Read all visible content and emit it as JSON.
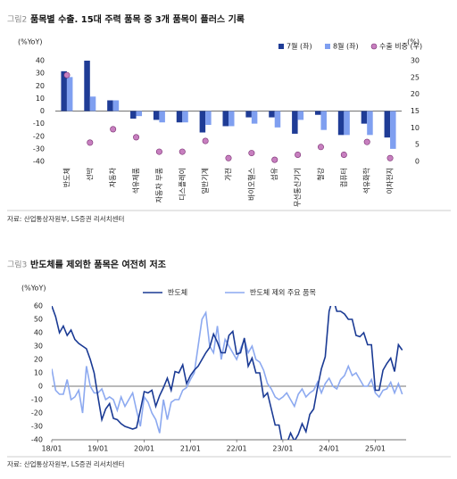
{
  "chart_data": [
    {
      "type": "bar",
      "figure": "그림2",
      "title": "품목별 수출. 15대 주력 품목 중 3개 품목이 플러스 기록",
      "ylabel": "(%YoY)",
      "y2label": "(%)",
      "categories": [
        "반도체",
        "선박",
        "자동차",
        "석유제품",
        "자동차 부품",
        "디스플레이",
        "일반기계",
        "가전",
        "바이오헬스",
        "섬유",
        "무선통신기기",
        "철강",
        "컴퓨터",
        "석유화학",
        "이차전지"
      ],
      "series": [
        {
          "name": "7월 (좌)",
          "color": "#1f3c96",
          "values": [
            31.6,
            40,
            8.5,
            -6,
            -7,
            -9,
            -17,
            -12,
            -5,
            -5,
            -18,
            -3,
            -19,
            -10,
            -21
          ]
        },
        {
          "name": "8월 (좌)",
          "color": "#7f9ff0",
          "values": [
            27,
            11.5,
            8.5,
            -4,
            -9,
            -9,
            -11,
            -12,
            -10,
            -13,
            -7,
            -15,
            -19,
            -19,
            -30
          ]
        },
        {
          "name": "수출 비중 (우)",
          "type": "scatter",
          "axis": "y2",
          "color": "#c77fbf",
          "values": [
            25.7,
            5.6,
            9.6,
            7.2,
            2.9,
            2.9,
            6.1,
            1,
            2.5,
            0.5,
            2,
            4.3,
            2,
            5.8,
            1
          ]
        }
      ],
      "ylim": [
        -40,
        40
      ],
      "yticks": [
        -40,
        -30,
        -20,
        -10,
        0,
        10,
        20,
        30,
        40
      ],
      "y2lim": [
        0,
        30
      ],
      "y2ticks": [
        0,
        5,
        10,
        15,
        20,
        25,
        30
      ],
      "source": "자료: 산업통상자원부, LS증권 리서치센터"
    },
    {
      "type": "line",
      "figure": "그림3",
      "title": "반도체를 제외한 품목은 여전히 저조",
      "ylabel": "(%YoY)",
      "x": [
        0,
        1,
        2,
        3,
        4,
        5,
        6,
        7,
        8,
        9,
        10,
        11,
        12,
        13,
        14,
        15,
        16,
        17,
        18,
        19,
        20,
        21,
        22,
        23,
        24,
        25,
        26,
        27,
        28,
        29,
        30,
        31,
        32,
        33,
        34,
        35,
        36,
        37,
        38,
        39,
        40,
        41,
        42,
        43,
        44,
        45,
        46,
        47,
        48,
        49,
        50,
        51,
        52,
        53,
        54,
        55,
        56,
        57,
        58,
        59,
        60,
        61,
        62,
        63,
        64,
        65,
        66,
        67,
        68,
        69,
        70,
        71,
        72,
        73,
        74,
        75,
        76,
        77,
        78,
        79,
        80,
        81,
        82,
        83,
        84,
        85,
        86,
        87,
        88,
        89,
        90,
        91
      ],
      "xlim": [
        0,
        92
      ],
      "xticks": [
        {
          "value": 0,
          "label": "18/01"
        },
        {
          "value": 12,
          "label": "19/01"
        },
        {
          "value": 24,
          "label": "20/01"
        },
        {
          "value": 36,
          "label": "21/01"
        },
        {
          "value": 48,
          "label": "22/01"
        },
        {
          "value": 60,
          "label": "23/01"
        },
        {
          "value": 72,
          "label": "24/01"
        },
        {
          "value": 84,
          "label": "25/01"
        }
      ],
      "ylim": [
        -40,
        60
      ],
      "yticks": [
        -40,
        -30,
        -20,
        -10,
        0,
        10,
        20,
        30,
        40,
        50,
        60
      ],
      "series": [
        {
          "name": "반도체",
          "color": "#1a3a94",
          "values": [
            60,
            52,
            40,
            45,
            38,
            42,
            35,
            32,
            30,
            28,
            20,
            10,
            -8,
            -25,
            -17,
            -13,
            -24,
            -25,
            -28,
            -30,
            -31,
            -32,
            -31,
            -18,
            -4,
            -5,
            -3,
            -15,
            -7,
            -1,
            6,
            -3,
            11,
            10,
            16,
            2,
            8,
            12,
            15,
            20,
            25,
            29,
            39,
            33,
            25,
            25,
            38,
            41,
            24,
            25,
            36,
            15,
            21,
            10,
            10,
            -8,
            -5,
            -17,
            -29,
            -29,
            -45,
            -43,
            -35,
            -41,
            -36,
            -28,
            -34,
            -21,
            -17,
            -1,
            13,
            22,
            56,
            66,
            56,
            56,
            54,
            50,
            50,
            38,
            37,
            40,
            31,
            31,
            -3,
            -3,
            12,
            17,
            21,
            11,
            31,
            27
          ]
        },
        {
          "name": "반도체 제외 주요 품목",
          "color": "#8ca9f0",
          "values": [
            13,
            -3,
            -6,
            -6,
            5,
            -10,
            -8,
            -3,
            -20,
            15,
            0,
            -5,
            -5,
            -2,
            -10,
            -8,
            -10,
            -18,
            -8,
            -15,
            -10,
            -5,
            -18,
            -30,
            -8,
            -12,
            -20,
            -25,
            -35,
            -10,
            -25,
            -12,
            -10,
            -10,
            -3,
            -1,
            5,
            10,
            30,
            50,
            55,
            30,
            25,
            45,
            20,
            35,
            30,
            25,
            20,
            28,
            35,
            25,
            30,
            20,
            18,
            12,
            2,
            -2,
            -8,
            -10,
            -8,
            -5,
            -10,
            -15,
            -6,
            -2,
            -8,
            -5,
            -3,
            3,
            -5,
            2,
            6,
            0,
            -2,
            5,
            8,
            15,
            8,
            10,
            5,
            0,
            0,
            5,
            -5,
            -8,
            -3,
            -2,
            3,
            -5,
            2,
            -6
          ]
        }
      ],
      "source": "자료: 산업통상자원부, LS증권 리서치센터"
    }
  ]
}
